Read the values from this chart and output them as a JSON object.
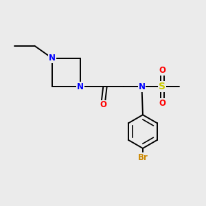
{
  "background_color": "#ebebeb",
  "atom_colors": {
    "N": "#0000ff",
    "O": "#ff0000",
    "S": "#cccc00",
    "Br": "#cc8800",
    "C": "#000000"
  },
  "bond_color": "#000000",
  "font_size": 8.5
}
